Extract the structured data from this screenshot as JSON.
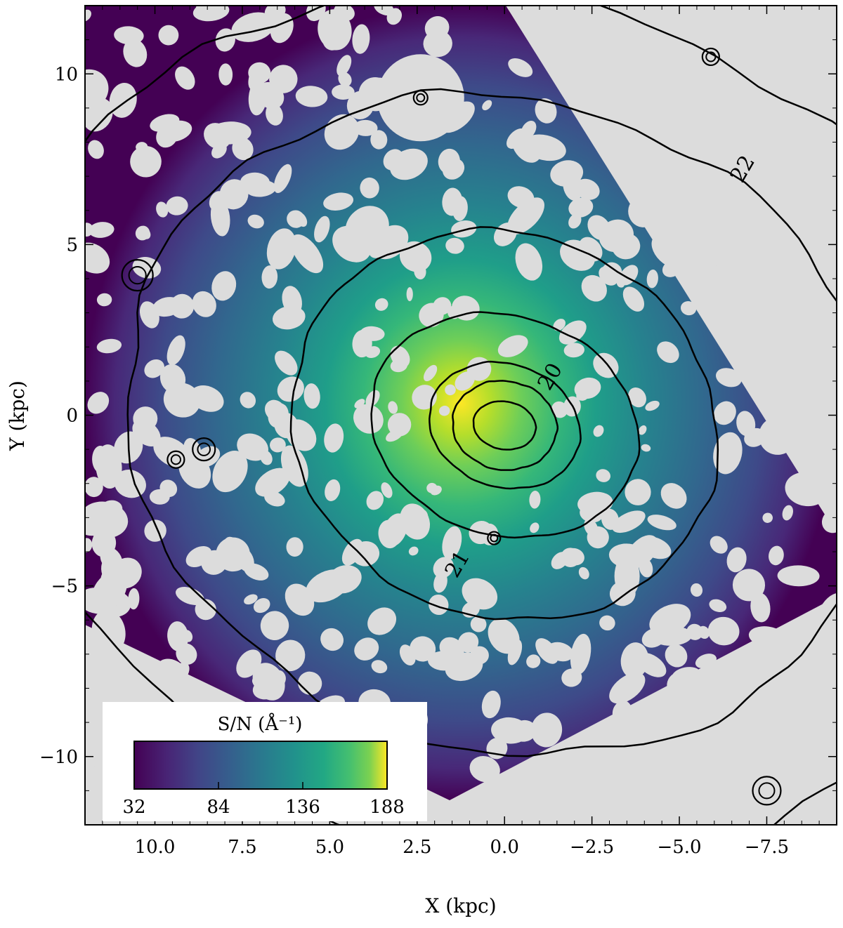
{
  "chart_data": {
    "type": "heatmap",
    "title": "",
    "xlabel": "X (kpc)",
    "ylabel": "Y (kpc)",
    "xlim": [
      12.0,
      -9.5
    ],
    "ylim": [
      -12.0,
      12.0
    ],
    "x_ticks": [
      10.0,
      7.5,
      5.0,
      2.5,
      0.0,
      -2.5,
      -5.0,
      -7.5
    ],
    "x_tick_labels": [
      "10.0",
      "7.5",
      "5.0",
      "2.5",
      "0.0",
      "−2.5",
      "−5.0",
      "−7.5"
    ],
    "y_ticks": [
      10,
      5,
      0,
      -5,
      -10
    ],
    "y_tick_labels": [
      "10",
      "5",
      "0",
      "−5",
      "−10"
    ],
    "colorbar": {
      "title": "S/N (Å⁻¹)",
      "colormap": "viridis",
      "range": [
        32,
        188
      ],
      "ticks": [
        32,
        84,
        136,
        188
      ],
      "tick_labels": [
        "32",
        "84",
        "136",
        "188"
      ],
      "placement": "lower-left"
    },
    "contours": [
      {
        "level": 20,
        "label": "20",
        "semi_major": 2.2,
        "semi_minor": 1.8
      },
      {
        "level": 21,
        "label": "21",
        "semi_major": 3.9,
        "semi_minor": 3.2
      },
      {
        "level": 22,
        "label": "22",
        "semi_major": 11.0,
        "semi_minor": 9.5
      }
    ],
    "masked_color": "#dcdcdc",
    "peak_center": [
      0.0,
      -0.3
    ],
    "peak_value": 188
  }
}
